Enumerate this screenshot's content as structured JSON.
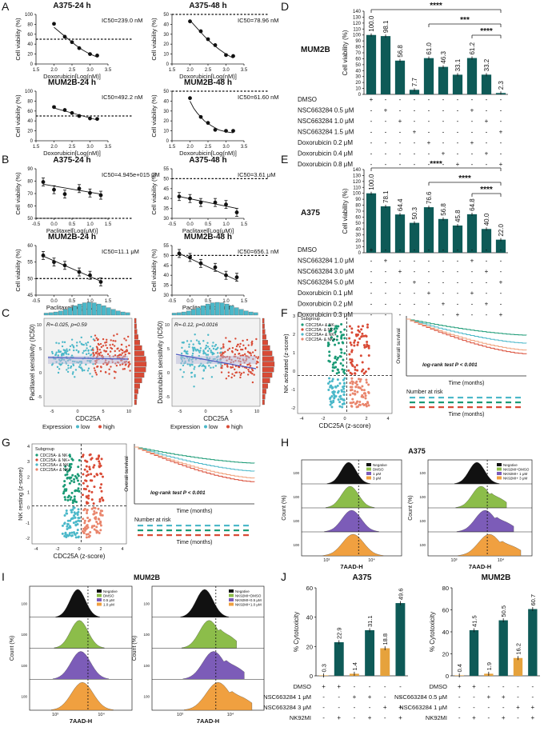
{
  "figure": {
    "panels": [
      {
        "label": "A"
      },
      {
        "label": "B"
      },
      {
        "label": "C"
      },
      {
        "label": "D"
      },
      {
        "label": "E"
      },
      {
        "label": "F"
      },
      {
        "label": "G"
      },
      {
        "label": "H"
      },
      {
        "label": "I"
      },
      {
        "label": "J"
      }
    ]
  },
  "chart_data": [
    {
      "id": "A1",
      "type": "scatter",
      "title": "A375-24 h",
      "annotation": "IC50=239.0 nM",
      "xlabel": "Doxorubicin[Log(nM)]",
      "ylabel": "Cell viability (%)",
      "xlim": [
        1.5,
        3.5
      ],
      "ylim": [
        0,
        100
      ],
      "xticks": [
        "1.5",
        "2.0",
        "2.5",
        "3.0",
        "3.5"
      ],
      "yticks": [
        "0",
        "20",
        "40",
        "60",
        "80",
        "100"
      ],
      "reference_y": 50,
      "x": [
        2.0,
        2.3,
        2.5,
        2.7,
        3.0,
        3.2
      ],
      "y": [
        81,
        55,
        44,
        32,
        20,
        17
      ],
      "fit": {
        "x": [
          2.0,
          2.2,
          2.4,
          2.6,
          2.8,
          3.0,
          3.2
        ],
        "y": [
          74,
          62,
          50,
          38,
          28,
          20,
          14
        ]
      }
    },
    {
      "id": "A2",
      "type": "scatter",
      "title": "A375-48 h",
      "annotation": "IC50=78.96 nM",
      "xlabel": "Doxorubicin[Log(nM)]",
      "ylabel": "Cell viability (%)",
      "xlim": [
        1.5,
        3.5
      ],
      "ylim": [
        0,
        50
      ],
      "xticks": [
        "1.5",
        "2.0",
        "2.5",
        "3.0",
        "3.5"
      ],
      "yticks": [
        "0",
        "10",
        "20",
        "30",
        "40",
        "50"
      ],
      "reference_y": 50,
      "x": [
        2.0,
        2.3,
        2.5,
        2.7,
        3.0,
        3.2
      ],
      "y": [
        43,
        33,
        25,
        19,
        9,
        8
      ],
      "fit": {
        "x": [
          2.0,
          2.2,
          2.4,
          2.6,
          2.8,
          3.0,
          3.2
        ],
        "y": [
          44,
          36,
          28,
          21,
          15,
          10,
          6
        ]
      }
    },
    {
      "id": "A3",
      "type": "scatter",
      "title": "MUM2B-24 h",
      "annotation": "IC50=492.2 nM",
      "xlabel": "Doxorubicin[Log(nM)]",
      "ylabel": "Cell viability (%)",
      "xlim": [
        1.5,
        3.5
      ],
      "ylim": [
        0,
        100
      ],
      "xticks": [
        "1.5",
        "2.0",
        "2.5",
        "3.0",
        "3.5"
      ],
      "yticks": [
        "0",
        "20",
        "40",
        "60",
        "80",
        "100"
      ],
      "reference_y": 50,
      "x": [
        2.0,
        2.3,
        2.5,
        2.7,
        3.0,
        3.2
      ],
      "y": [
        68,
        62,
        56,
        50,
        45,
        44
      ],
      "fit": {
        "x": [
          2.0,
          2.2,
          2.4,
          2.6,
          2.8,
          3.0,
          3.2
        ],
        "y": [
          66,
          62,
          58,
          54,
          50,
          46,
          42
        ]
      }
    },
    {
      "id": "A4",
      "type": "scatter",
      "title": "MUM2B-48 h",
      "annotation": "IC50=61.60 nM",
      "xlabel": "Doxorubicin[Log(nM)]",
      "ylabel": "Cell viability (%)",
      "xlim": [
        1.5,
        3.5
      ],
      "ylim": [
        0,
        50
      ],
      "xticks": [
        "1.5",
        "2.0",
        "2.5",
        "3.0",
        "3.5"
      ],
      "yticks": [
        "0",
        "10",
        "20",
        "30",
        "40",
        "50"
      ],
      "reference_y": 50,
      "x": [
        2.0,
        2.3,
        2.5,
        2.7,
        3.0,
        3.2
      ],
      "y": [
        43,
        24,
        18,
        11,
        10,
        10
      ],
      "fit": {
        "x": [
          2.0,
          2.1,
          2.2,
          2.4,
          2.6,
          2.8,
          3.0,
          3.2
        ],
        "y": [
          40,
          33,
          28,
          20,
          15,
          11,
          9,
          8
        ]
      }
    },
    {
      "id": "B1",
      "type": "scatter",
      "title": "A375-24 h",
      "annotation": "IC50=4.945e+015 μM",
      "xlabel": "Paclitaxel[Log(μM)]",
      "ylabel": "Cell viability (%)",
      "xlim": [
        -0.5,
        1.5
      ],
      "ylim": [
        50,
        95
      ],
      "xticks": [
        "-0.5",
        "0.0",
        "0.5",
        "1.0",
        "1.5"
      ],
      "yticks": [
        "50",
        "60",
        "70",
        "80",
        "90"
      ],
      "reference_y": 50,
      "x": [
        -0.3,
        0.0,
        0.3,
        0.7,
        1.0,
        1.3
      ],
      "y": [
        83,
        76,
        72,
        77,
        73,
        71
      ],
      "fit": {
        "x": [
          -0.3,
          1.3
        ],
        "y": [
          81,
          72
        ]
      }
    },
    {
      "id": "B2",
      "type": "scatter",
      "title": "A375-48 h",
      "annotation": "IC50=3.61 μM",
      "xlabel": "Paclitaxel[Log(μM)]",
      "ylabel": "Cell viability (%)",
      "xlim": [
        -0.5,
        1.5
      ],
      "ylim": [
        30,
        55
      ],
      "xticks": [
        "-0.5",
        "0.0",
        "0.5",
        "1.0",
        "1.5"
      ],
      "yticks": [
        "30",
        "35",
        "40",
        "45",
        "50",
        "55"
      ],
      "reference_y": 50,
      "x": [
        -0.3,
        0.0,
        0.3,
        0.7,
        1.0,
        1.3
      ],
      "y": [
        41,
        40,
        38,
        38,
        37,
        33
      ],
      "fit": {
        "x": [
          -0.3,
          1.3
        ],
        "y": [
          41,
          35
        ]
      }
    },
    {
      "id": "B3",
      "type": "scatter",
      "title": "MUM2B-24 h",
      "annotation": "IC50=11.1 μM",
      "xlabel": "Paclitaxel[Log(μM)]",
      "ylabel": "Cell viability (%)",
      "xlim": [
        -0.5,
        1.5
      ],
      "ylim": [
        45,
        60
      ],
      "xticks": [
        "-0.5",
        "0.0",
        "0.5",
        "1.0",
        "1.5"
      ],
      "yticks": [
        "45",
        "50",
        "55",
        "60"
      ],
      "reference_y": 50,
      "x": [
        -0.3,
        0.0,
        0.3,
        0.7,
        1.0,
        1.3
      ],
      "y": [
        57,
        55,
        54,
        52,
        51,
        49
      ],
      "fit": {
        "x": [
          -0.3,
          1.3
        ],
        "y": [
          56.8,
          49.2
        ]
      }
    },
    {
      "id": "B4",
      "type": "scatter",
      "title": "MUM2B-48 h",
      "annotation": "IC50=656.1 nM",
      "xlabel": "Paclitaxel[Log(μM)]",
      "ylabel": "Cell viability (%)",
      "xlim": [
        -0.5,
        1.5
      ],
      "ylim": [
        30,
        55
      ],
      "xticks": [
        "-0.5",
        "0.0",
        "0.5",
        "1.0",
        "1.5"
      ],
      "yticks": [
        "30",
        "35",
        "40",
        "45",
        "50",
        "55"
      ],
      "reference_y": 50,
      "x": [
        -0.3,
        0.0,
        0.3,
        0.7,
        1.0,
        1.3
      ],
      "y": [
        51,
        49,
        46,
        44,
        40,
        39
      ],
      "fit": {
        "x": [
          -0.3,
          1.3
        ],
        "y": [
          51,
          37.5
        ]
      }
    },
    {
      "id": "D",
      "type": "bar",
      "title": "MUM2B",
      "ylabel": "Cell viability (%)",
      "ylim": [
        0,
        140
      ],
      "yticks": [
        "0",
        "10",
        "20",
        "30",
        "40",
        "50",
        "60",
        "70",
        "80",
        "90",
        "100",
        "110",
        "120",
        "130",
        "140"
      ],
      "values": [
        100.0,
        98.1,
        56.8,
        7.7,
        61.0,
        46.3,
        33.1,
        61.2,
        33.2,
        2.3
      ],
      "significance": [
        "****",
        "***",
        "****"
      ],
      "conditions": [
        {
          "label": "DMSO",
          "marks": [
            "+",
            "-",
            "-",
            "-",
            "-",
            "-",
            "-",
            "-",
            "-",
            "-"
          ]
        },
        {
          "label": "NSC663284 0.5 μM",
          "marks": [
            "-",
            "+",
            "-",
            "-",
            "-",
            "-",
            "-",
            "+",
            "-",
            "-"
          ]
        },
        {
          "label": "NSC663284 1.0 μM",
          "marks": [
            "-",
            "-",
            "+",
            "-",
            "-",
            "-",
            "-",
            "-",
            "+",
            "-"
          ]
        },
        {
          "label": "NSC663284 1.5 μM",
          "marks": [
            "-",
            "-",
            "-",
            "+",
            "-",
            "-",
            "-",
            "-",
            "-",
            "+"
          ]
        },
        {
          "label": "Doxorubicin 0.2 μM",
          "marks": [
            "-",
            "-",
            "-",
            "-",
            "+",
            "-",
            "-",
            "+",
            "-",
            "-"
          ]
        },
        {
          "label": "Doxorubicin 0.4 μM",
          "marks": [
            "-",
            "-",
            "-",
            "-",
            "-",
            "+",
            "-",
            "-",
            "+",
            "-"
          ]
        },
        {
          "label": "Doxorubicin 0.8 μM",
          "marks": [
            "-",
            "-",
            "-",
            "-",
            "-",
            "-",
            "+",
            "-",
            "-",
            "+"
          ]
        }
      ]
    },
    {
      "id": "E",
      "type": "bar",
      "title": "A375",
      "ylabel": "Cell viability (%)",
      "ylim": [
        0,
        140
      ],
      "yticks": [
        "0",
        "10",
        "20",
        "30",
        "40",
        "50",
        "60",
        "70",
        "80",
        "90",
        "100",
        "110",
        "120",
        "130",
        "140"
      ],
      "values": [
        100.0,
        78.1,
        64.4,
        50.3,
        76.6,
        56.8,
        45.8,
        64.8,
        40.0,
        22.0
      ],
      "significance": [
        "****",
        "****",
        "****"
      ],
      "conditions": [
        {
          "label": "DMSO",
          "marks": [
            "+",
            "-",
            "-",
            "-",
            "-",
            "-",
            "-",
            "-",
            "-",
            "-"
          ]
        },
        {
          "label": "NSC663284 1.0 μM",
          "marks": [
            "-",
            "+",
            "-",
            "-",
            "-",
            "-",
            "-",
            "+",
            "-",
            "-"
          ]
        },
        {
          "label": "NSC663284 3.0 μM",
          "marks": [
            "-",
            "-",
            "+",
            "-",
            "-",
            "-",
            "-",
            "-",
            "+",
            "-"
          ]
        },
        {
          "label": "NSC663284 5.0 μM",
          "marks": [
            "-",
            "-",
            "-",
            "+",
            "-",
            "-",
            "-",
            "-",
            "-",
            "+"
          ]
        },
        {
          "label": "Doxorubicin 0.1 μM",
          "marks": [
            "-",
            "-",
            "-",
            "-",
            "+",
            "-",
            "-",
            "+",
            "-",
            "-"
          ]
        },
        {
          "label": "Doxorubicin 0.2 μM",
          "marks": [
            "-",
            "-",
            "-",
            "-",
            "-",
            "+",
            "-",
            "-",
            "+",
            "-"
          ]
        },
        {
          "label": "Doxorubicin 0.3 μM",
          "marks": [
            "-",
            "-",
            "-",
            "-",
            "-",
            "-",
            "+",
            "-",
            "-",
            "+"
          ]
        }
      ]
    },
    {
      "id": "C1",
      "type": "scatter",
      "xlabel": "CDC25A",
      "ylabel": "Paclitaxel sensitivity (IC50)",
      "annotation": "R=-0.025, p=0.59",
      "legend_title": "Expression",
      "legend": [
        "low",
        "high"
      ],
      "xticks": [
        "-5",
        "0",
        "5",
        "10"
      ],
      "yticks": [
        "-5",
        "0",
        "5",
        "10"
      ]
    },
    {
      "id": "C2",
      "type": "scatter",
      "xlabel": "CDC25A",
      "ylabel": "Doxorubicin sensitivity (IC50)",
      "annotation": "R=-0.12, p=0.0016",
      "legend_title": "Expression",
      "legend": [
        "low",
        "high"
      ],
      "xticks": [
        "-5",
        "0",
        "5",
        "10"
      ],
      "yticks": [
        "-5",
        "0",
        "5",
        "10"
      ]
    },
    {
      "id": "F",
      "type": "scatter",
      "xlabel": "CDC25A (z-score)",
      "ylabel": "NK activated (z-score)",
      "legend_title": "Subgroup",
      "legend": [
        "CDC25A+ & NK-",
        "CDC25A- & NK-",
        "CDC25A+ & NK+",
        "CDC25A- & NK+"
      ],
      "km_xlabel": "Time (months)",
      "km_ylabel": "Overall survival",
      "km_test": "log-rank test P < 0.001",
      "risk_title": "Number at risk",
      "xticks": [
        "-4",
        "-2",
        "0",
        "2",
        "4"
      ],
      "yticks": [
        "-2",
        "-1",
        "0",
        "1",
        "2",
        "3"
      ]
    },
    {
      "id": "G",
      "type": "scatter",
      "xlabel": "CDC25A (z-score)",
      "ylabel": "NK resting (z-score)",
      "legend_title": "Subgroup",
      "legend": [
        "CDC25A- & NK-",
        "CDC25A- & NK+",
        "CDC25A+ & NK-",
        "CDC25A+ & NK+"
      ],
      "km_xlabel": "Time (months)",
      "km_ylabel": "Overall survival",
      "km_test": "log-rank test P < 0.001",
      "risk_title": "Number at risk",
      "xticks": [
        "-4",
        "-2",
        "0",
        "2",
        "4"
      ],
      "yticks": [
        "-2",
        "-1",
        "0",
        "1",
        "2",
        "3",
        "4"
      ]
    },
    {
      "id": "H",
      "type": "histogram",
      "title": "A375",
      "xlabel": "7AAD-H",
      "ylabel": "Count (%)",
      "legend_left": [
        "Negative",
        "DMSO",
        "1 μM",
        "3 μM"
      ],
      "legend_right": [
        "Negative",
        "NK92MI+DMSO",
        "NK92MI+ 1 μM",
        "NK92MI+ 3 μM"
      ],
      "yticks": [
        "0",
        "20",
        "40",
        "60",
        "80",
        "100"
      ]
    },
    {
      "id": "I",
      "type": "histogram",
      "title": "MUM2B",
      "xlabel": "7AAD-H",
      "ylabel": "Count (%)",
      "legend_left": [
        "Negative",
        "DMSO",
        "0.5 μM",
        "1.0 μM"
      ],
      "legend_right": [
        "Negative",
        "NK92MI+DMSO",
        "NK92MI+0.5 μM",
        "NK92MI+1.0 μM"
      ],
      "yticks": [
        "0",
        "20",
        "40",
        "60",
        "80",
        "100"
      ]
    },
    {
      "id": "J1",
      "type": "bar",
      "title": "A375",
      "ylabel": "% Cytotoxicity",
      "ylim": [
        0,
        60
      ],
      "yticks": [
        "0",
        "20",
        "40",
        "60"
      ],
      "values": [
        0.3,
        22.9,
        1.4,
        31.1,
        18.8,
        49.6
      ],
      "conditions": [
        {
          "label": "DMSO",
          "marks": [
            "+",
            "+",
            "-",
            "-",
            "-",
            "-"
          ]
        },
        {
          "label": "NSC663284 1 μM",
          "marks": [
            "-",
            "-",
            "+",
            "+",
            "-",
            "-"
          ]
        },
        {
          "label": "NSC663284 3 μM",
          "marks": [
            "-",
            "-",
            "-",
            "-",
            "+",
            "+"
          ]
        },
        {
          "label": "NK92MI",
          "marks": [
            "-",
            "+",
            "-",
            "+",
            "-",
            "+"
          ]
        }
      ]
    },
    {
      "id": "J2",
      "type": "bar",
      "title": "MUM2B",
      "ylabel": "% Cytotoxicity",
      "ylim": [
        0,
        80
      ],
      "yticks": [
        "0",
        "20",
        "40",
        "60",
        "80"
      ],
      "values": [
        0.4,
        41.5,
        1.9,
        50.5,
        16.2,
        60.7
      ],
      "conditions": [
        {
          "label": "DMSO",
          "marks": [
            "+",
            "+",
            "-",
            "-",
            "-",
            "-"
          ]
        },
        {
          "label": "NSC663284 0.5 μM",
          "marks": [
            "-",
            "-",
            "+",
            "+",
            "-",
            "-"
          ]
        },
        {
          "label": "NSC663284 1 μM",
          "marks": [
            "-",
            "-",
            "-",
            "-",
            "+",
            "+"
          ]
        },
        {
          "label": "NK92MI",
          "marks": [
            "-",
            "+",
            "-",
            "+",
            "-",
            "+"
          ]
        }
      ]
    }
  ],
  "colors": {
    "bar": "#0e5a57",
    "low": "#4bb8c9",
    "high": "#d94a35",
    "green": "#1a9a75",
    "salmon": "#e9856c",
    "km_teal": "#4bb8c9",
    "km_dteal": "#1a9a75",
    "km_red": "#d94a35",
    "km_orange": "#f0a07a",
    "negative": "#111111",
    "hist_green": "#8cbd4a",
    "hist_purple": "#7c5cb8",
    "hist_orange": "#f0a040",
    "grid": "#cccccc"
  }
}
